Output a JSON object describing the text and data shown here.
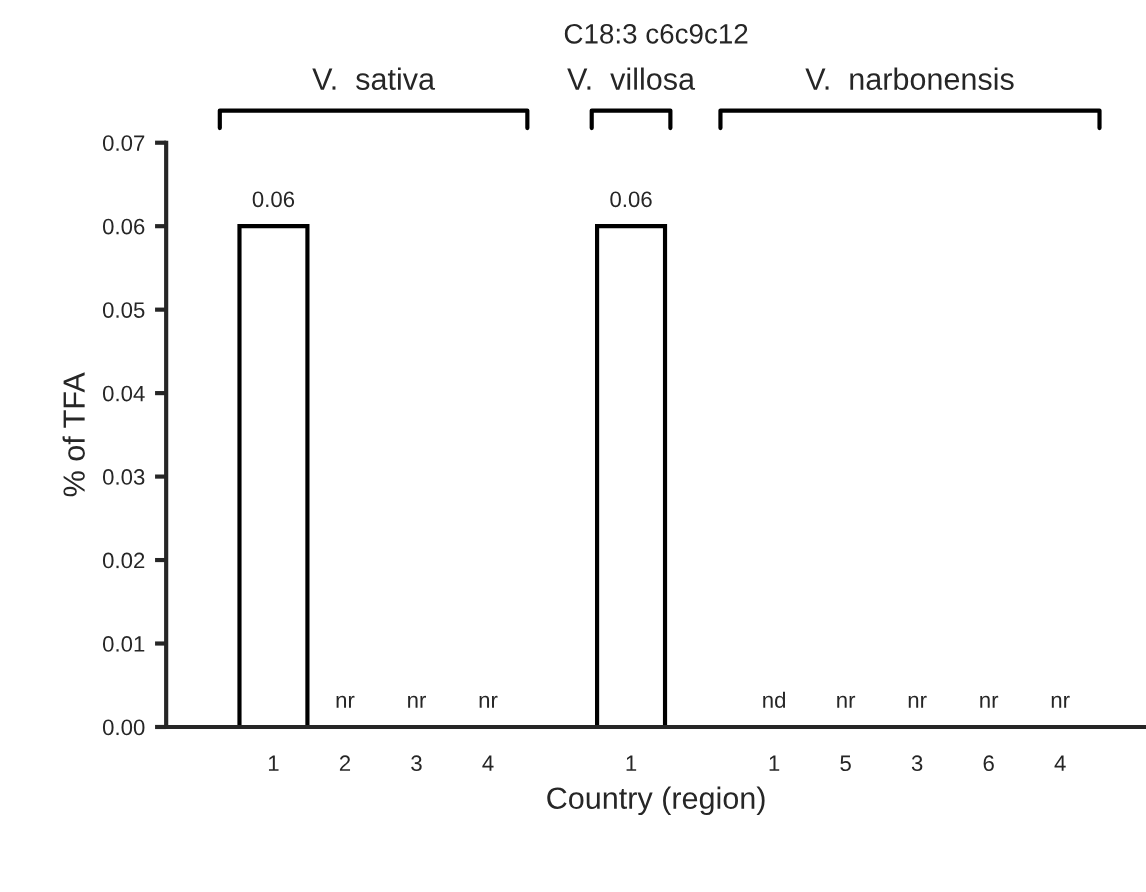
{
  "chart_data": {
    "type": "bar",
    "title": "C18:3 c6c9c12",
    "xlabel": "Country (region)",
    "ylabel": "% of TFA",
    "categories": [
      "1",
      "2",
      "3",
      "4",
      null,
      "1",
      null,
      "1",
      "5",
      "3",
      "6",
      "4"
    ],
    "values": [
      0.06,
      null,
      null,
      null,
      null,
      0.06,
      null,
      null,
      null,
      null,
      null,
      null
    ],
    "value_labels": [
      "0.06",
      "nr",
      "nr",
      "nr",
      null,
      "0.06",
      null,
      "nd",
      "nr",
      "nr",
      "nr",
      "nr"
    ],
    "color": "#ffffff",
    "annotations": [
      "V.  sativa",
      "V.  villosa",
      "V.  narbonensis"
    ],
    "ylim": [
      0,
      0.07
    ],
    "yticks": [
      {
        "value": 0,
        "label": "0.00"
      },
      {
        "value": 0.01,
        "label": "0.01"
      },
      {
        "value": 0.02,
        "label": "0.02"
      },
      {
        "value": 0.03,
        "label": "0.03"
      },
      {
        "value": 0.04,
        "label": "0.04"
      },
      {
        "value": 0.05,
        "label": "0.05"
      },
      {
        "value": 0.06,
        "label": "0.06"
      },
      {
        "value": 0.07,
        "label": "0.07"
      }
    ],
    "grid": false
  }
}
